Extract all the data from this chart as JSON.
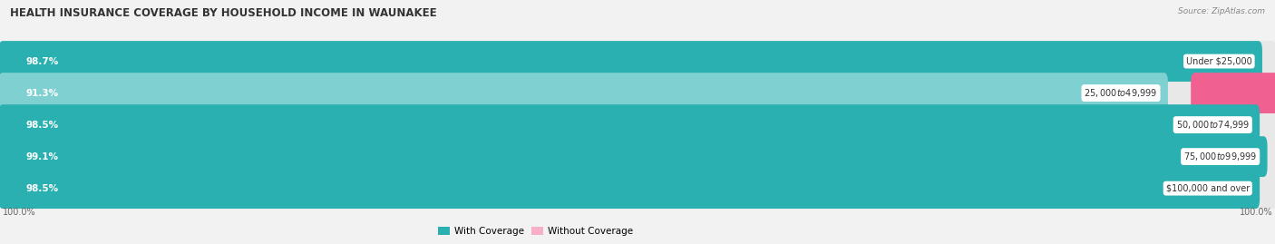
{
  "title": "HEALTH INSURANCE COVERAGE BY HOUSEHOLD INCOME IN WAUNAKEE",
  "source": "Source: ZipAtlas.com",
  "categories": [
    "Under $25,000",
    "$25,000 to $49,999",
    "$50,000 to $74,999",
    "$75,000 to $99,999",
    "$100,000 and over"
  ],
  "with_coverage": [
    98.7,
    91.3,
    98.5,
    99.1,
    98.5
  ],
  "without_coverage": [
    1.3,
    8.7,
    1.5,
    0.89,
    1.5
  ],
  "with_coverage_colors": [
    "#2ab0b0",
    "#7fd0d0",
    "#2ab0b0",
    "#2ab0b0",
    "#2ab0b0"
  ],
  "without_coverage_color": "#f06090",
  "without_coverage_color_light": "#f8afc8",
  "bar_bg_color": "#e8e8e8",
  "bar_height": 0.68,
  "figsize": [
    14.06,
    2.69
  ],
  "dpi": 100,
  "title_fontsize": 8.5,
  "label_fontsize": 7.5,
  "tick_fontsize": 7,
  "legend_fontsize": 7.5,
  "x_left_label": "100.0%",
  "x_right_label": "100.0%",
  "pink_scale": 4.5
}
